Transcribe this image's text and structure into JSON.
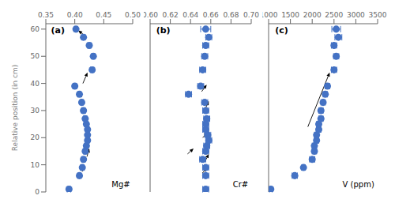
{
  "chart_data": [
    {
      "type": "scatter",
      "title": "(a)",
      "xlabel": "Mg#",
      "ylabel": "Relative position (in cm)",
      "x": [
        0.39,
        0.408,
        0.413,
        0.415,
        0.418,
        0.42,
        0.422,
        0.422,
        0.422,
        0.42,
        0.418,
        0.415,
        0.412,
        0.408,
        0.4,
        0.43,
        0.432,
        0.425,
        0.415,
        0.402
      ],
      "values": [
        1,
        6,
        9,
        12,
        15,
        17,
        19,
        21,
        23,
        25,
        27,
        30,
        33,
        36,
        39,
        45,
        50,
        54,
        57,
        60
      ],
      "xerr": [
        0.003,
        0.003,
        0.003,
        0.003,
        0.003,
        0.003,
        0.003,
        0.003,
        0.003,
        0.003,
        0.003,
        0.003,
        0.003,
        0.003,
        0.003,
        0.003,
        0.003,
        0.003,
        0.003,
        0.003
      ],
      "arrows": [
        {
          "x1": 0.421,
          "y1": 13,
          "x2": 0.425,
          "y2": 16
        },
        {
          "x1": 0.412,
          "y1": 35,
          "x2": 0.404,
          "y2": 37
        },
        {
          "x1": 0.414,
          "y1": 40,
          "x2": 0.422,
          "y2": 44
        },
        {
          "x1": 0.413,
          "y1": 7.5,
          "x2": 0.415,
          "y2": 9.5
        },
        {
          "x1": 0.415,
          "y1": 58,
          "x2": 0.406,
          "y2": 59.5
        }
      ],
      "xlim": [
        0.35,
        0.5
      ],
      "xticks": [
        0.35,
        {
          "value": 0.4,
          "label": "0.40"
        },
        0.45,
        {
          "value": 0.5,
          "label": "0.50"
        }
      ],
      "ylim": [
        0,
        62
      ],
      "yticks": [
        0,
        10,
        20,
        30,
        40,
        50,
        60
      ],
      "color": "#4472C4",
      "marker": "circle",
      "grid": false
    },
    {
      "type": "scatter",
      "title": "(b)",
      "xlabel": "Cr#",
      "x": [
        0.655,
        0.655,
        0.655,
        0.652,
        0.655,
        0.656,
        0.658,
        0.657,
        0.655,
        0.655,
        0.656,
        0.655,
        0.654,
        0.638,
        0.65,
        0.652,
        0.654,
        0.655,
        0.658,
        0.655
      ],
      "values": [
        1,
        6,
        9,
        12,
        15,
        17,
        19,
        21,
        23,
        25,
        27,
        30,
        33,
        36,
        39,
        45,
        50,
        54,
        57,
        60
      ],
      "xerr": [
        0.003,
        0.003,
        0.003,
        0.003,
        0.003,
        0.003,
        0.003,
        0.003,
        0.003,
        0.003,
        0.003,
        0.003,
        0.003,
        0.003,
        0.003,
        0.003,
        0.003,
        0.003,
        0.003,
        0.005
      ],
      "arrows": [
        {
          "x1": 0.654,
          "y1": 11,
          "x2": 0.658,
          "y2": 14
        },
        {
          "x1": 0.655,
          "y1": 31,
          "x2": 0.658,
          "y2": 33.5
        },
        {
          "x1": 0.651,
          "y1": 37,
          "x2": 0.656,
          "y2": 39.5
        },
        {
          "x1": 0.652,
          "y1": 20,
          "x2": 0.657,
          "y2": 22
        },
        {
          "x1": 0.637,
          "y1": 14,
          "x2": 0.643,
          "y2": 16
        },
        {
          "x1": 0.652,
          "y1": 7,
          "x2": 0.656,
          "y2": 9
        }
      ],
      "xlim": [
        0.6,
        0.7
      ],
      "xticks": [
        {
          "value": 0.6,
          "label": "0.60"
        },
        0.62,
        0.64,
        0.66,
        0.68,
        {
          "value": 0.7,
          "label": "0.70"
        }
      ],
      "ylim": [
        0,
        62
      ],
      "yticks": [
        0,
        10,
        20,
        30,
        40,
        50,
        60
      ],
      "color": "#4472C4",
      "marker": "circle",
      "grid": false,
      "tick_labels": "x"
    },
    {
      "type": "scatter",
      "title": "(c)",
      "xlabel": "V (ppm)",
      "x": [
        1050,
        1600,
        1800,
        2000,
        2050,
        2050,
        2100,
        2100,
        2150,
        2150,
        2200,
        2200,
        2250,
        2300,
        2350,
        2500,
        2550,
        2500,
        2600,
        2550
      ],
      "values": [
        1,
        6,
        9,
        12,
        15,
        17,
        19,
        21,
        23,
        25,
        27,
        30,
        33,
        36,
        39,
        45,
        50,
        54,
        57,
        60
      ],
      "xerr": [
        30,
        60,
        40,
        60,
        50,
        50,
        50,
        50,
        50,
        50,
        50,
        50,
        50,
        50,
        50,
        60,
        60,
        60,
        80,
        100
      ],
      "arrows": [
        {
          "x1": 1900,
          "y1": 24,
          "x2": 2400,
          "y2": 44
        }
      ],
      "xlim": [
        1000,
        3500
      ],
      "xticks": [
        1000,
        1500,
        2000,
        2500,
        3000,
        3500
      ],
      "ylim": [
        0,
        62
      ],
      "yticks": [
        0,
        10,
        20,
        30,
        40,
        50,
        60
      ],
      "color": "#4472C4",
      "marker": "circle",
      "grid": false,
      "tick_labels": "x"
    }
  ]
}
